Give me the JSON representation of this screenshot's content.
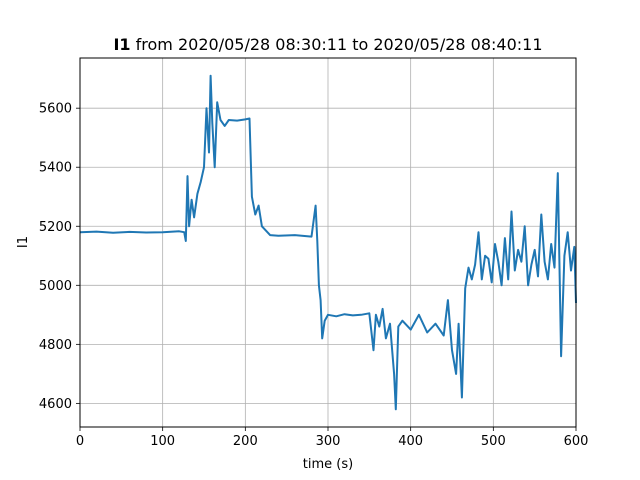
{
  "chart_data": {
    "type": "line",
    "title": {
      "bold": "I1",
      "rest": " from 2020/05/28 08:30:11 to 2020/05/28 08:40:11"
    },
    "xlabel": "time (s)",
    "ylabel": "I1",
    "xlim": [
      0,
      600
    ],
    "ylim": [
      4520,
      5770
    ],
    "xticks": [
      0,
      100,
      200,
      300,
      400,
      500,
      600
    ],
    "yticks": [
      4600,
      4800,
      5000,
      5200,
      5400,
      5600
    ],
    "grid": true,
    "line_color": "#1f77b4",
    "series": [
      {
        "x": [
          0,
          20,
          40,
          60,
          80,
          100,
          120,
          126,
          128,
          130,
          132,
          135,
          138,
          142,
          146,
          150,
          153,
          156,
          158,
          160,
          163,
          166,
          170,
          175,
          180,
          190,
          200,
          205,
          208,
          212,
          216,
          220,
          230,
          240,
          260,
          280,
          285,
          287,
          289,
          291,
          293,
          296,
          300,
          310,
          320,
          330,
          340,
          350,
          355,
          358,
          362,
          366,
          370,
          375,
          380,
          382,
          385,
          390,
          400,
          410,
          420,
          430,
          440,
          445,
          450,
          455,
          458,
          462,
          466,
          470,
          474,
          478,
          482,
          486,
          490,
          494,
          498,
          502,
          506,
          510,
          514,
          518,
          522,
          526,
          530,
          534,
          538,
          542,
          546,
          550,
          554,
          558,
          562,
          566,
          570,
          574,
          578,
          582,
          586,
          590,
          594,
          598,
          600
        ],
        "y": [
          5180,
          5182,
          5178,
          5181,
          5179,
          5180,
          5183,
          5180,
          5150,
          5370,
          5200,
          5290,
          5230,
          5310,
          5350,
          5400,
          5600,
          5450,
          5710,
          5550,
          5400,
          5620,
          5560,
          5540,
          5560,
          5558,
          5562,
          5565,
          5300,
          5240,
          5270,
          5200,
          5170,
          5168,
          5170,
          5165,
          5270,
          5150,
          5000,
          4950,
          4820,
          4880,
          4900,
          4895,
          4902,
          4898,
          4900,
          4905,
          4780,
          4900,
          4860,
          4920,
          4820,
          4870,
          4700,
          4580,
          4860,
          4880,
          4850,
          4900,
          4840,
          4870,
          4830,
          4950,
          4780,
          4700,
          4870,
          4620,
          4990,
          5060,
          5020,
          5070,
          5180,
          5020,
          5100,
          5090,
          5010,
          5140,
          5080,
          5000,
          5160,
          5020,
          5250,
          5050,
          5120,
          5080,
          5200,
          5000,
          5070,
          5120,
          5030,
          5240,
          5080,
          5020,
          5140,
          5060,
          5380,
          4760,
          5100,
          5180,
          5050,
          5130,
          4940
        ]
      }
    ]
  }
}
